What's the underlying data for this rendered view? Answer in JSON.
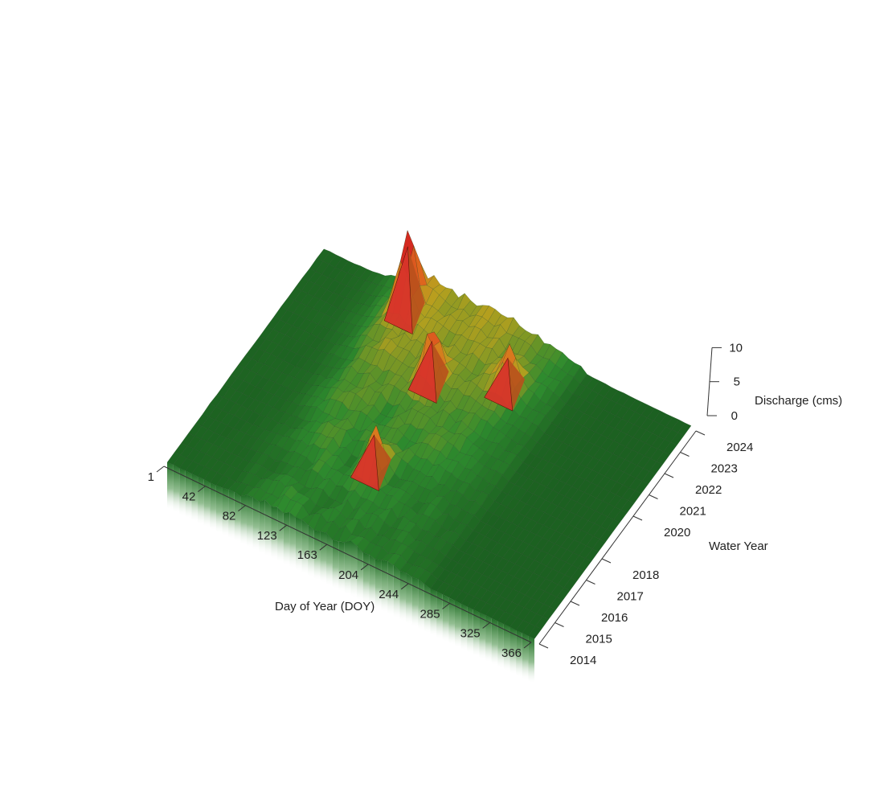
{
  "chart_data": {
    "type": "surface3d",
    "title": "",
    "xlabel": "Day of Year (DOY)",
    "ylabel": "Water Year",
    "zlabel": "Discharge (cms)",
    "x_ticks": [
      1,
      42,
      82,
      123,
      163,
      204,
      244,
      285,
      325,
      366
    ],
    "y_ticks": [
      2014,
      2015,
      2016,
      2017,
      2018,
      2020,
      2021,
      2022,
      2023,
      2024
    ],
    "z_ticks": [
      0,
      5,
      10
    ],
    "xlim": [
      1,
      366
    ],
    "ylim": [
      2014,
      2024
    ],
    "zlim": [
      0,
      10
    ],
    "colormap": [
      "#1b5e20",
      "#2e8b2e",
      "#b8a01e",
      "#e0701e",
      "#d42a20"
    ],
    "peaks": [
      {
        "doy": 100,
        "year": 2023,
        "discharge": 9.6
      },
      {
        "doy": 155,
        "year": 2021,
        "discharge": 6.2
      },
      {
        "doy": 160,
        "year": 2017,
        "discharge": 5.4
      },
      {
        "doy": 215,
        "year": 2022,
        "discharge": 5.0
      }
    ]
  }
}
